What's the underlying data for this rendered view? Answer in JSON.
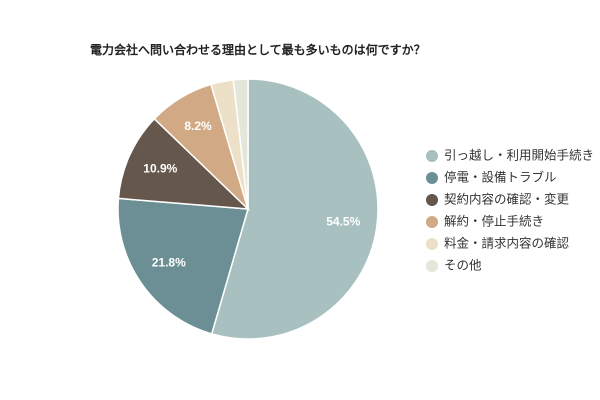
{
  "chart_data": {
    "type": "pie",
    "title": "電力会社へ問い合わせる理由として最も多いものは何ですか？",
    "categories": [
      "引っ越し・利用開始手続き",
      "停電・設備トラブル",
      "契約内容の確認・変更",
      "解約・停止手続き",
      "料金・請求内容の確認",
      "その他"
    ],
    "values": [
      54.5,
      21.8,
      10.9,
      8.2,
      2.8,
      1.8
    ],
    "value_labels": [
      "54.5%",
      "21.8%",
      "10.9%",
      "8.2%",
      null,
      null
    ],
    "colors": [
      "#a8c0c0",
      "#6b8f94",
      "#66574c",
      "#d1aa85",
      "#ede0c8",
      "#e4e6da"
    ],
    "legend": "right"
  }
}
